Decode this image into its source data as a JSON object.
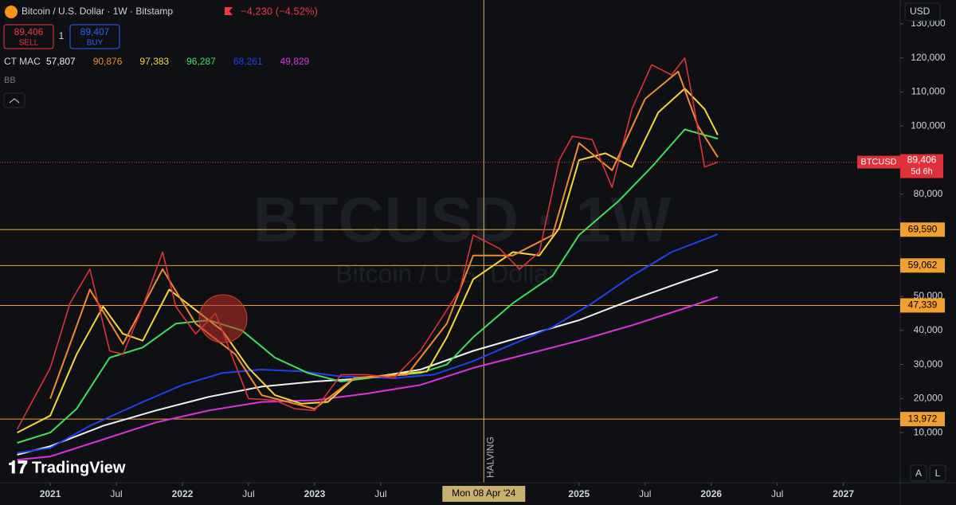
{
  "header": {
    "symbol": "Bitcoin / U.S. Dollar · 1W · Bitstamp",
    "change": "−4,230 (−4.52%)",
    "sell_price": "89,406",
    "sell": "SELL",
    "quantity": "1",
    "buy_price": "89,407",
    "buy": "BUY",
    "indicator2": "BB",
    "currency": "USD"
  },
  "watermark": {
    "symbol": "BTCUSD · 1W",
    "name": "Bitcoin / U.S. Dollar"
  },
  "brand": "TradingView",
  "buttons": [
    "A",
    "L"
  ],
  "chart_data": {
    "type": "line",
    "indicator": "CT MAC",
    "xlim": [
      2020.62,
      2027.43
    ],
    "ylim": [
      -4700,
      137000
    ],
    "xticks": [
      {
        "value": 2021,
        "label": "2021"
      },
      {
        "value": 2021.5,
        "label": "Jul"
      },
      {
        "value": 2022,
        "label": "2022"
      },
      {
        "value": 2022.5,
        "label": "Jul"
      },
      {
        "value": 2023,
        "label": "2023"
      },
      {
        "value": 2023.5,
        "label": "Jul"
      },
      {
        "value": 2025,
        "label": "2025"
      },
      {
        "value": 2025.5,
        "label": "Jul"
      },
      {
        "value": 2026,
        "label": "2026"
      },
      {
        "value": 2026.5,
        "label": "Jul"
      },
      {
        "value": 2027,
        "label": "2027"
      }
    ],
    "yticks": [
      {
        "value": 10000,
        "label": "10,000"
      },
      {
        "value": 20000,
        "label": "20,000"
      },
      {
        "value": 30000,
        "label": "30,000"
      },
      {
        "value": 40000,
        "label": "40,000"
      },
      {
        "value": 50000,
        "label": "50,000"
      },
      {
        "value": 80000,
        "label": "80,000"
      },
      {
        "value": 100000,
        "label": "100,000"
      },
      {
        "value": 110000,
        "label": "110,000"
      },
      {
        "value": 120000,
        "label": "120,000"
      },
      {
        "value": 130000,
        "label": "130,000"
      }
    ],
    "price": {
      "name": "BTCUSD",
      "color": "#e0303a",
      "last_label": "89,406",
      "countdown": "5d 6h",
      "x": [
        2020.75,
        2021.0,
        2021.15,
        2021.3,
        2021.45,
        2021.55,
        2021.7,
        2021.85,
        2021.95,
        2022.1,
        2022.25,
        2022.4,
        2022.5,
        2022.7,
        2022.85,
        2023.0,
        2023.2,
        2023.4,
        2023.6,
        2023.8,
        2023.95,
        2024.1,
        2024.2,
        2024.4,
        2024.55,
        2024.7,
        2024.85,
        2024.95,
        2025.1,
        2025.25,
        2025.4,
        2025.55,
        2025.7,
        2025.8,
        2025.85,
        2025.95,
        2026.05
      ],
      "values": [
        11000,
        29000,
        48000,
        58000,
        34000,
        33000,
        47000,
        63000,
        47000,
        39000,
        45000,
        30000,
        20000,
        19500,
        17000,
        16500,
        27000,
        27000,
        26000,
        34000,
        43000,
        52000,
        68000,
        64000,
        58000,
        63000,
        90000,
        97000,
        96000,
        82000,
        105000,
        118000,
        115000,
        120000,
        110000,
        88000,
        89406
      ]
    },
    "series": [
      {
        "color": "#f08a30",
        "last_label": "90,876",
        "x": [
          2021.0,
          2021.3,
          2021.55,
          2021.85,
          2022.1,
          2022.4,
          2022.6,
          2023.0,
          2023.3,
          2023.7,
          2024.0,
          2024.2,
          2024.5,
          2024.8,
          2025.0,
          2025.25,
          2025.5,
          2025.75,
          2025.9,
          2026.05
        ],
        "values": [
          20000,
          52000,
          36000,
          58000,
          42000,
          33000,
          21000,
          17000,
          26000,
          27000,
          42000,
          62000,
          62000,
          68000,
          95000,
          87000,
          108000,
          116000,
          100000,
          90876
        ]
      },
      {
        "color": "#f5d63a",
        "last_label": "97,383",
        "x": [
          2020.75,
          2021.0,
          2021.2,
          2021.4,
          2021.55,
          2021.7,
          2021.9,
          2022.1,
          2022.3,
          2022.5,
          2022.7,
          2022.9,
          2023.1,
          2023.3,
          2023.6,
          2023.85,
          2024.0,
          2024.2,
          2024.5,
          2024.7,
          2024.85,
          2025.0,
          2025.2,
          2025.4,
          2025.6,
          2025.8,
          2025.95,
          2026.05
        ],
        "values": [
          10000,
          15000,
          33000,
          47000,
          39000,
          37000,
          52000,
          46000,
          40000,
          29000,
          21000,
          18500,
          19000,
          26000,
          27000,
          28000,
          38000,
          55000,
          63000,
          62000,
          70000,
          90000,
          92000,
          88000,
          104000,
          111000,
          105000,
          97383
        ]
      },
      {
        "color": "#3ee05a",
        "last_label": "96,287",
        "x": [
          2020.75,
          2021.0,
          2021.2,
          2021.45,
          2021.7,
          2021.95,
          2022.2,
          2022.45,
          2022.7,
          2022.95,
          2023.2,
          2023.5,
          2023.8,
          2024.0,
          2024.2,
          2024.5,
          2024.8,
          2025.0,
          2025.3,
          2025.55,
          2025.8,
          2026.05
        ],
        "values": [
          7000,
          10000,
          17000,
          32000,
          35000,
          42000,
          43000,
          40000,
          32000,
          27500,
          25000,
          26500,
          27500,
          30000,
          38000,
          48000,
          56000,
          68000,
          78000,
          88000,
          99000,
          96287
        ]
      },
      {
        "color": "#2040f0",
        "last_label": "68,261",
        "x": [
          2020.75,
          2021.0,
          2021.3,
          2021.7,
          2022.0,
          2022.3,
          2022.6,
          2022.9,
          2023.2,
          2023.6,
          2023.9,
          2024.2,
          2024.5,
          2024.8,
          2025.1,
          2025.4,
          2025.7,
          2026.05
        ],
        "values": [
          4000,
          5500,
          12000,
          19000,
          24000,
          27500,
          28500,
          28000,
          26500,
          26000,
          27000,
          31000,
          36000,
          41000,
          48000,
          56000,
          63000,
          68261
        ]
      },
      {
        "color": "#f0f0f0",
        "last_label": "57,807",
        "x": [
          2020.75,
          2021.0,
          2021.4,
          2021.8,
          2022.2,
          2022.6,
          2023.0,
          2023.4,
          2023.8,
          2024.2,
          2024.6,
          2025.0,
          2025.4,
          2025.8,
          2026.05
        ],
        "values": [
          3500,
          6000,
          12000,
          16500,
          20500,
          23500,
          25000,
          26000,
          28500,
          34000,
          38500,
          43000,
          49000,
          54500,
          57807
        ]
      },
      {
        "color": "#e030e0",
        "last_label": "49,829",
        "x": [
          2020.75,
          2021.0,
          2021.4,
          2021.8,
          2022.2,
          2022.6,
          2023.0,
          2023.4,
          2023.8,
          2024.2,
          2024.6,
          2025.0,
          2025.4,
          2025.8,
          2026.05
        ],
        "values": [
          2000,
          3000,
          8000,
          13000,
          16500,
          19000,
          19500,
          21500,
          24000,
          29000,
          33000,
          37000,
          41500,
          46500,
          49829
        ]
      }
    ],
    "levels": [
      {
        "value": 69590,
        "label": "69,590"
      },
      {
        "value": 59062,
        "label": "59,062"
      },
      {
        "value": 47339,
        "label": "47,339"
      },
      {
        "value": 13972,
        "label": "13,972"
      }
    ],
    "halving": {
      "x": 2024.28,
      "label": "HALVING",
      "date_label": "Mon 08 Apr '24"
    }
  }
}
